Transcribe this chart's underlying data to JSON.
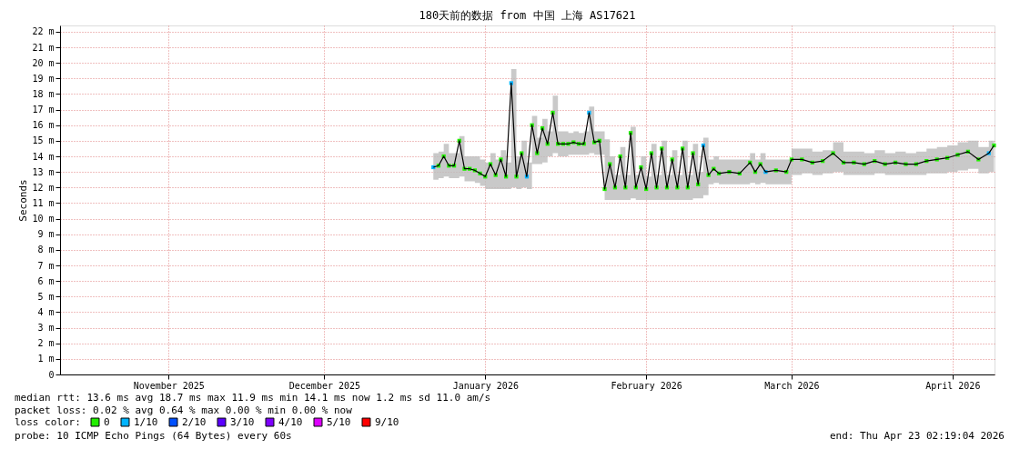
{
  "chart_data": {
    "type": "line",
    "title": "180天前的数据 from 中国 上海 AS17621",
    "ylabel": "Seconds",
    "x": [
      "2026-01-05",
      "2026-01-06",
      "2026-01-07",
      "2026-01-08",
      "2026-01-09",
      "2026-01-10",
      "2026-01-11",
      "2026-01-12",
      "2026-01-13",
      "2026-01-14",
      "2026-01-15",
      "2026-01-16",
      "2026-01-17",
      "2026-01-18",
      "2026-01-19",
      "2026-01-20",
      "2026-01-21",
      "2026-01-22",
      "2026-01-23",
      "2026-01-24",
      "2026-01-25",
      "2026-01-26",
      "2026-01-27",
      "2026-01-28",
      "2026-01-29",
      "2026-01-30",
      "2026-01-31",
      "2026-02-01",
      "2026-02-02",
      "2026-02-03",
      "2026-02-04",
      "2026-02-05",
      "2026-02-06",
      "2026-02-07",
      "2026-02-08",
      "2026-02-09",
      "2026-02-10",
      "2026-02-11",
      "2026-02-12",
      "2026-02-13",
      "2026-02-14",
      "2026-02-15",
      "2026-02-16",
      "2026-02-17",
      "2026-02-18",
      "2026-02-19",
      "2026-02-20",
      "2026-02-21",
      "2026-02-22",
      "2026-02-23",
      "2026-02-24",
      "2026-02-25",
      "2026-02-26",
      "2026-02-27",
      "2026-02-28",
      "2026-03-01",
      "2026-03-03",
      "2026-03-05",
      "2026-03-07",
      "2026-03-08",
      "2026-03-09",
      "2026-03-10",
      "2026-03-12",
      "2026-03-14",
      "2026-03-15",
      "2026-03-17",
      "2026-03-19",
      "2026-03-21",
      "2026-03-23",
      "2026-03-25",
      "2026-03-27",
      "2026-03-29",
      "2026-03-31",
      "2026-04-02",
      "2026-04-04",
      "2026-04-06",
      "2026-04-08",
      "2026-04-10",
      "2026-04-12",
      "2026-04-14",
      "2026-04-16",
      "2026-04-18",
      "2026-04-20",
      "2026-04-22",
      "2026-04-23"
    ],
    "series": [
      {
        "color": "#000000",
        "line_style": "solid",
        "values": [
          13.3,
          13.4,
          14.0,
          13.4,
          13.4,
          15.0,
          13.2,
          13.2,
          13.1,
          12.9,
          12.7,
          13.5,
          12.8,
          13.8,
          12.7,
          18.7,
          12.7,
          14.2,
          12.7,
          16.0,
          14.2,
          15.8,
          14.8,
          16.8,
          14.8,
          14.8,
          14.8,
          14.9,
          14.8,
          14.8,
          16.8,
          14.9,
          15.0,
          11.9,
          13.5,
          12.0,
          14.0,
          12.0,
          15.5,
          12.0,
          13.3,
          11.9,
          14.2,
          12.0,
          14.5,
          12.0,
          13.8,
          12.0,
          14.5,
          12.0,
          14.2,
          12.2,
          14.7,
          12.8,
          13.2,
          12.9,
          13.0,
          12.9,
          13.6,
          13.0,
          13.5,
          13.0,
          13.1,
          13.0,
          13.8,
          13.8,
          13.6,
          13.7,
          14.2,
          13.6,
          13.6,
          13.5,
          13.7,
          13.5,
          13.6,
          13.5,
          13.5,
          13.7,
          13.8,
          13.9,
          14.1,
          14.3,
          13.8,
          14.2,
          14.7
        ],
        "lower": [
          12.5,
          12.6,
          12.7,
          12.6,
          12.6,
          12.7,
          12.4,
          12.4,
          12.3,
          12.1,
          11.9,
          11.9,
          11.9,
          11.9,
          11.9,
          12.0,
          11.9,
          12.0,
          11.9,
          13.5,
          13.5,
          13.6,
          14.0,
          14.2,
          14.0,
          14.0,
          14.1,
          14.1,
          14.1,
          14.1,
          14.2,
          14.1,
          14.1,
          11.2,
          11.2,
          11.2,
          11.2,
          11.2,
          11.3,
          11.2,
          11.2,
          11.2,
          11.2,
          11.2,
          11.2,
          11.2,
          11.2,
          11.2,
          11.2,
          11.2,
          11.3,
          11.3,
          11.5,
          12.2,
          12.3,
          12.2,
          12.2,
          12.2,
          12.3,
          12.2,
          12.3,
          12.2,
          12.2,
          12.2,
          12.8,
          12.9,
          12.8,
          12.9,
          13.0,
          12.8,
          12.8,
          12.8,
          12.9,
          12.8,
          12.8,
          12.8,
          12.8,
          12.9,
          12.9,
          13.0,
          13.1,
          13.2,
          12.9,
          13.0,
          13.4
        ],
        "upper": [
          14.2,
          14.3,
          14.8,
          14.2,
          14.2,
          15.3,
          14.0,
          14.0,
          14.0,
          13.8,
          13.6,
          14.2,
          13.8,
          14.4,
          13.6,
          19.6,
          14.0,
          15.0,
          13.6,
          16.6,
          15.2,
          16.4,
          15.6,
          17.9,
          15.6,
          15.6,
          15.5,
          15.6,
          15.5,
          15.6,
          17.2,
          15.6,
          15.6,
          15.1,
          14.0,
          12.8,
          14.6,
          12.8,
          15.9,
          12.8,
          14.0,
          12.7,
          14.8,
          12.8,
          15.0,
          12.8,
          14.4,
          12.8,
          15.0,
          12.8,
          14.8,
          13.0,
          15.2,
          13.8,
          14.0,
          13.8,
          13.8,
          13.8,
          14.2,
          13.8,
          14.2,
          13.8,
          13.8,
          13.8,
          14.5,
          14.5,
          14.3,
          14.4,
          14.9,
          14.3,
          14.3,
          14.2,
          14.4,
          14.2,
          14.3,
          14.2,
          14.3,
          14.5,
          14.6,
          14.7,
          14.9,
          15.0,
          14.6,
          15.0,
          15.6
        ]
      },
      {
        "type": "scatter",
        "name": "0",
        "color": "#22ee00",
        "marker": "square",
        "values": [
          null,
          13.4,
          14.0,
          13.4,
          13.4,
          15.0,
          13.2,
          13.2,
          13.1,
          12.9,
          12.7,
          13.5,
          12.8,
          13.8,
          12.7,
          null,
          12.7,
          14.2,
          null,
          16.0,
          14.2,
          15.8,
          14.8,
          16.8,
          14.8,
          14.8,
          14.8,
          14.9,
          14.8,
          14.8,
          null,
          14.9,
          15.0,
          11.9,
          13.5,
          12.0,
          14.0,
          12.0,
          15.5,
          12.0,
          13.3,
          11.9,
          14.2,
          12.0,
          14.5,
          12.0,
          13.8,
          12.0,
          14.5,
          12.0,
          14.2,
          12.2,
          null,
          12.8,
          13.2,
          12.9,
          13.0,
          12.9,
          13.6,
          13.0,
          13.5,
          null,
          13.1,
          13.0,
          13.8,
          13.8,
          13.6,
          13.7,
          14.2,
          13.6,
          13.6,
          13.5,
          13.7,
          13.5,
          13.6,
          13.5,
          13.5,
          13.7,
          13.8,
          13.9,
          14.1,
          14.3,
          13.8,
          null,
          14.7
        ]
      },
      {
        "type": "scatter",
        "name": "1/10",
        "color": "#00b4ff",
        "marker": "square",
        "values": [
          13.3,
          null,
          null,
          null,
          null,
          null,
          null,
          null,
          null,
          null,
          null,
          null,
          null,
          null,
          null,
          18.7,
          null,
          null,
          12.7,
          null,
          null,
          null,
          null,
          null,
          null,
          null,
          null,
          null,
          null,
          null,
          16.8,
          null,
          null,
          null,
          null,
          null,
          null,
          null,
          null,
          null,
          null,
          null,
          null,
          null,
          null,
          null,
          null,
          null,
          null,
          null,
          null,
          null,
          14.7,
          null,
          null,
          null,
          null,
          null,
          null,
          null,
          null,
          13.0,
          null,
          null,
          null,
          null,
          null,
          null,
          null,
          null,
          null,
          null,
          null,
          null,
          null,
          null,
          null,
          null,
          null,
          null,
          null,
          null,
          null,
          14.2,
          null
        ]
      },
      {
        "type": "scatter",
        "name": "2/10",
        "color": "#0050ff",
        "marker": "square",
        "values": [
          null,
          null,
          null,
          null,
          null,
          null,
          null,
          null,
          null,
          null,
          null,
          null,
          null,
          null,
          null,
          null,
          null,
          null,
          null,
          null,
          null,
          null,
          null,
          null,
          null,
          null,
          null,
          null,
          null,
          null,
          null,
          null,
          null,
          null,
          null,
          null,
          null,
          null,
          null,
          null,
          null,
          null,
          null,
          null,
          null,
          null,
          null,
          null,
          null,
          null,
          null,
          null,
          null,
          null,
          null,
          null,
          null,
          null,
          null,
          null,
          null,
          null,
          null,
          null,
          null,
          null,
          null,
          null,
          null,
          null,
          null,
          null,
          null,
          null,
          null,
          null,
          null,
          null,
          null,
          null,
          null,
          null,
          null,
          null,
          null
        ]
      },
      {
        "type": "scatter",
        "name": "3/10",
        "color": "#5a00ff",
        "marker": "square",
        "values": [
          null,
          null,
          null,
          null,
          null,
          null,
          null,
          null,
          null,
          null,
          null,
          null,
          null,
          null,
          null,
          null,
          null,
          null,
          null,
          null,
          null,
          null,
          null,
          null,
          null,
          null,
          null,
          null,
          null,
          null,
          null,
          null,
          null,
          null,
          null,
          null,
          null,
          null,
          null,
          null,
          null,
          null,
          null,
          null,
          null,
          null,
          null,
          null,
          null,
          null,
          null,
          null,
          null,
          null,
          null,
          null,
          null,
          null,
          null,
          null,
          null,
          null,
          null,
          null,
          null,
          null,
          null,
          null,
          null,
          null,
          null,
          null,
          null,
          null,
          null,
          null,
          null,
          null,
          null,
          null,
          null,
          null,
          null,
          null,
          null
        ]
      },
      {
        "type": "scatter",
        "name": "4/10",
        "color": "#7e00ff",
        "marker": "square",
        "values": [
          null,
          null,
          null,
          null,
          null,
          null,
          null,
          null,
          null,
          null,
          null,
          null,
          null,
          null,
          null,
          null,
          null,
          null,
          null,
          null,
          null,
          null,
          null,
          null,
          null,
          null,
          null,
          null,
          null,
          null,
          null,
          null,
          null,
          null,
          null,
          null,
          null,
          null,
          null,
          null,
          null,
          null,
          null,
          null,
          null,
          null,
          null,
          null,
          null,
          null,
          null,
          null,
          null,
          null,
          null,
          null,
          null,
          null,
          null,
          null,
          null,
          null,
          null,
          null,
          null,
          null,
          null,
          null,
          null,
          null,
          null,
          null,
          null,
          null,
          null,
          null,
          null,
          null,
          null,
          null,
          null,
          null,
          null,
          null,
          null
        ]
      },
      {
        "type": "scatter",
        "name": "5/10",
        "color": "#dd00ff",
        "marker": "square",
        "values": [
          null,
          null,
          null,
          null,
          null,
          null,
          null,
          null,
          null,
          null,
          null,
          null,
          null,
          null,
          null,
          null,
          null,
          null,
          null,
          null,
          null,
          null,
          null,
          null,
          null,
          null,
          null,
          null,
          null,
          null,
          null,
          null,
          null,
          null,
          null,
          null,
          null,
          null,
          null,
          null,
          null,
          null,
          null,
          null,
          null,
          null,
          null,
          null,
          null,
          null,
          null,
          null,
          null,
          null,
          null,
          null,
          null,
          null,
          null,
          null,
          null,
          null,
          null,
          null,
          null,
          null,
          null,
          null,
          null,
          null,
          null,
          null,
          null,
          null,
          null,
          null,
          null,
          null,
          null,
          null,
          null,
          null,
          null,
          null,
          null
        ]
      },
      {
        "type": "scatter",
        "name": "9/10",
        "color": "#ff0000",
        "marker": "square",
        "values": [
          null,
          null,
          null,
          null,
          null,
          null,
          null,
          null,
          null,
          null,
          null,
          null,
          null,
          null,
          null,
          null,
          null,
          null,
          null,
          null,
          null,
          null,
          null,
          null,
          null,
          null,
          null,
          null,
          null,
          null,
          null,
          null,
          null,
          null,
          null,
          null,
          null,
          null,
          null,
          null,
          null,
          null,
          null,
          null,
          null,
          null,
          null,
          null,
          null,
          null,
          null,
          null,
          null,
          null,
          null,
          null,
          null,
          null,
          null,
          null,
          null,
          null,
          null,
          null,
          null,
          null,
          null,
          null,
          null,
          null,
          null,
          null,
          null,
          null,
          null,
          null,
          null,
          null,
          null,
          null,
          null,
          null,
          null,
          null,
          null
        ]
      }
    ],
    "legend_title": "loss color:",
    "legend": "bottom left",
    "grid": true,
    "xlim": [
      "2025-10-25T02:19",
      "2026-04-23T02:19"
    ],
    "xticks": [
      {
        "value": "2025-11-15",
        "label": "November 2025"
      },
      {
        "value": "2025-12-15",
        "label": "December 2025"
      },
      {
        "value": "2026-01-15",
        "label": "January 2026"
      },
      {
        "value": "2026-02-15",
        "label": "February 2026"
      },
      {
        "value": "2026-03-15",
        "label": "March 2026"
      },
      {
        "value": "2026-04-15",
        "label": "April 2026"
      }
    ],
    "ylim": [
      0,
      22.4
    ],
    "yticks": [
      0,
      {
        "value": 1,
        "label": "1 m"
      },
      {
        "value": 2,
        "label": "2 m"
      },
      {
        "value": 3,
        "label": "3 m"
      },
      {
        "value": 4,
        "label": "4 m"
      },
      {
        "value": 5,
        "label": "5 m"
      },
      {
        "value": 6,
        "label": "6 m"
      },
      {
        "value": 7,
        "label": "7 m"
      },
      {
        "value": 8,
        "label": "8 m"
      },
      {
        "value": 9,
        "label": "9 m"
      },
      {
        "value": 10,
        "label": "10 m"
      },
      {
        "value": 11,
        "label": "11 m"
      },
      {
        "value": 12,
        "label": "12 m"
      },
      {
        "value": 13,
        "label": "13 m"
      },
      {
        "value": 14,
        "label": "14 m"
      },
      {
        "value": 15,
        "label": "15 m"
      },
      {
        "value": 16,
        "label": "16 m"
      },
      {
        "value": 17,
        "label": "17 m"
      },
      {
        "value": 18,
        "label": "18 m"
      },
      {
        "value": 19,
        "label": "19 m"
      },
      {
        "value": 20,
        "label": "20 m"
      },
      {
        "value": 21,
        "label": "21 m"
      },
      {
        "value": 22,
        "label": "22 m"
      }
    ],
    "annotations": [
      "median rtt:  13.6 ms avg  18.7 ms max  11.9 ms min  14.1 ms now  1.2 ms sd  11.0   am/s",
      "packet loss: 0.02 % avg  0.64 % max  0.00 % min  0.00 % now",
      "probe:       10 ICMP Echo Pings (64 Bytes) every 60s",
      "end: Thu Apr 23 02:19:04 2026"
    ]
  }
}
